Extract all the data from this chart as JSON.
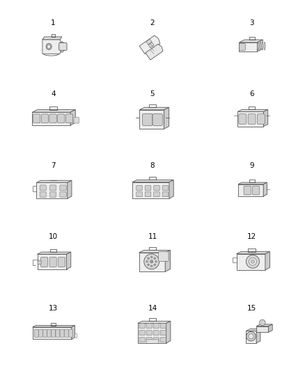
{
  "background_color": "#ffffff",
  "line_color": "#555555",
  "text_color": "#000000",
  "figsize": [
    4.38,
    5.33
  ],
  "dpi": 100,
  "items": [
    {
      "num": 1,
      "col": 0,
      "row": 0
    },
    {
      "num": 2,
      "col": 1,
      "row": 0
    },
    {
      "num": 3,
      "col": 2,
      "row": 0
    },
    {
      "num": 4,
      "col": 0,
      "row": 1
    },
    {
      "num": 5,
      "col": 1,
      "row": 1
    },
    {
      "num": 6,
      "col": 2,
      "row": 1
    },
    {
      "num": 7,
      "col": 0,
      "row": 2
    },
    {
      "num": 8,
      "col": 1,
      "row": 2
    },
    {
      "num": 9,
      "col": 2,
      "row": 2
    },
    {
      "num": 10,
      "col": 0,
      "row": 3
    },
    {
      "num": 11,
      "col": 1,
      "row": 3
    },
    {
      "num": 12,
      "col": 2,
      "row": 3
    },
    {
      "num": 13,
      "col": 0,
      "row": 4
    },
    {
      "num": 14,
      "col": 1,
      "row": 4
    },
    {
      "num": 15,
      "col": 2,
      "row": 4
    }
  ]
}
